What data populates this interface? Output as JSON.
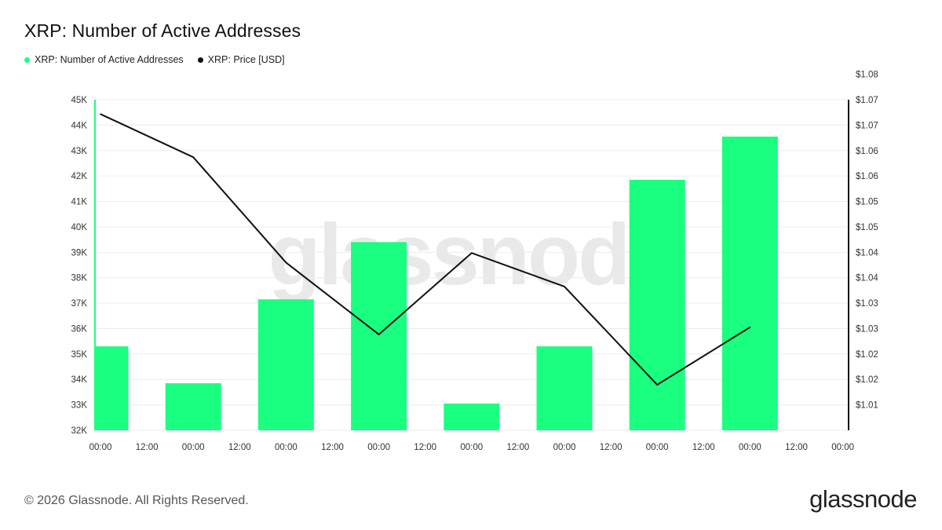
{
  "title": "XRP: Number of Active Addresses",
  "legend": [
    {
      "label": "XRP: Number of Active Addresses",
      "color": "#1aff80"
    },
    {
      "label": "XRP: Price [USD]",
      "color": "#111111"
    }
  ],
  "watermark": "glassnode",
  "footer": "© 2026 Glassnode. All Rights Reserved.",
  "logo": "glassnode",
  "chart_data": {
    "type": "bar",
    "x_tick_labels": [
      "00:00",
      "12:00",
      "00:00",
      "12:00",
      "00:00",
      "12:00",
      "00:00",
      "12:00",
      "00:00",
      "12:00",
      "00:00",
      "12:00",
      "00:00",
      "12:00",
      "00:00",
      "12:00",
      "00:00"
    ],
    "y_left_ticks": [
      "32K",
      "33K",
      "34K",
      "35K",
      "36K",
      "37K",
      "38K",
      "39K",
      "40K",
      "41K",
      "42K",
      "43K",
      "44K",
      "45K"
    ],
    "y_right_ticks": [
      "$1.01",
      "$1.02",
      "$1.02",
      "$1.03",
      "$1.03",
      "$1.04",
      "$1.04",
      "$1.05",
      "$1.05",
      "$1.06",
      "$1.06",
      "$1.07",
      "$1.07",
      "$1.08"
    ],
    "ylim_left": [
      32000,
      45000
    ],
    "ylim_right": [
      1.0035,
      1.0725
    ],
    "series": [
      {
        "name": "XRP: Number of Active Addresses",
        "kind": "bar",
        "axis": "left",
        "color": "#1aff80",
        "x": [
          0,
          1,
          2,
          3,
          4,
          5,
          6,
          7
        ],
        "values": [
          35300,
          33850,
          37150,
          39400,
          33050,
          35300,
          41850,
          43550
        ]
      },
      {
        "name": "XRP: Price [USD]",
        "kind": "line",
        "axis": "right",
        "color": "#111111",
        "x": [
          0,
          1,
          2,
          3,
          4,
          5,
          6,
          7
        ],
        "values": [
          1.0695,
          1.0605,
          1.0385,
          1.0235,
          1.0405,
          1.0335,
          1.013,
          1.025
        ]
      }
    ]
  }
}
